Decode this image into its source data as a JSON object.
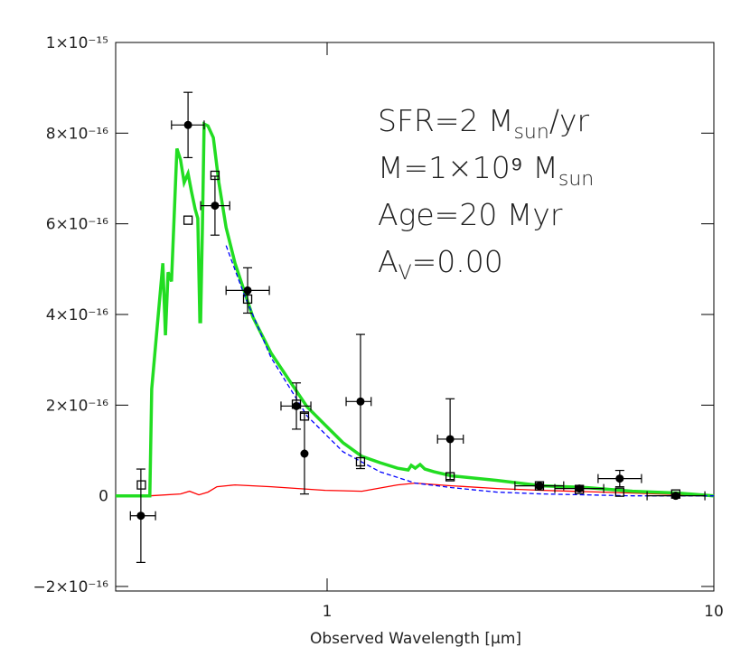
{
  "chart_data": {
    "type": "line",
    "xlabel": "Observed Wavelength [μm]",
    "log_x": true,
    "xlim": [
      0.284,
      10
    ],
    "xticks": [
      1,
      10
    ],
    "ylim": [
      -2.1e-16,
      1e-15
    ],
    "yticks": [
      {
        "value": -2e-16,
        "label": "−2×10⁻¹⁶"
      },
      0,
      {
        "value": 2e-16,
        "label": "2×10⁻¹⁶"
      },
      {
        "value": 4e-16,
        "label": "4×10⁻¹⁶"
      },
      {
        "value": 6e-16,
        "label": "6×10⁻¹⁶"
      },
      {
        "value": 8e-16,
        "label": "8×10⁻¹⁶"
      },
      {
        "value": 1e-15,
        "label": "1×10⁻¹⁵"
      }
    ],
    "annotations": [
      [
        "SFR=2 M",
        "sun",
        "/yr"
      ],
      [
        "M=1×10⁹ M",
        "sun"
      ],
      [
        "Age=20 Myr"
      ],
      [
        "A",
        "V",
        "=0.00"
      ]
    ],
    "series": [
      {
        "color": "#ff0000",
        "style": "solid",
        "x": [
          0.348,
          0.418,
          0.441,
          0.466,
          0.492,
          0.519,
          0.578,
          0.716,
          0.989,
          1.23,
          1.52,
          1.69,
          2.1,
          2.75,
          3.6,
          6.16,
          10.0
        ],
        "values": [
          0,
          4e-18,
          1e-17,
          2e-18,
          8e-18,
          2e-17,
          2.4e-17,
          2e-17,
          1.2e-17,
          1e-17,
          2.4e-17,
          2.8e-17,
          2.2e-17,
          1.6e-17,
          1.2e-17,
          6e-18,
          0
        ]
      },
      {
        "color": "#22dd22",
        "style": "solid",
        "x": [
          0.284,
          0.348,
          0.352,
          0.376,
          0.382,
          0.388,
          0.396,
          0.409,
          0.418,
          0.427,
          0.437,
          0.446,
          0.456,
          0.463,
          0.469,
          0.471,
          0.476,
          0.481,
          0.492,
          0.508,
          0.525,
          0.548,
          0.578,
          0.61,
          0.643,
          0.716,
          0.798,
          0.888,
          0.989,
          1.1,
          1.23,
          1.37,
          1.52,
          1.62,
          1.65,
          1.69,
          1.74,
          1.79,
          1.89,
          2.1,
          2.75,
          3.6,
          4.71,
          6.16,
          8.07,
          10.0
        ],
        "values": [
          0,
          0,
          2.36e-16,
          5.13e-16,
          3.54e-16,
          4.93e-16,
          4.73e-16,
          7.66e-16,
          7.41e-16,
          6.91e-16,
          7.11e-16,
          6.71e-16,
          6.32e-16,
          6.12e-16,
          3.84e-16,
          3.84e-16,
          5.92e-16,
          8.2e-16,
          8.16e-16,
          7.9e-16,
          6.91e-16,
          5.92e-16,
          5.13e-16,
          4.53e-16,
          3.94e-16,
          3.15e-16,
          2.55e-16,
          1.96e-16,
          1.56e-16,
          1.17e-16,
          8.7e-17,
          7.3e-17,
          6.1e-17,
          5.7e-17,
          6.7e-17,
          6.1e-17,
          6.9e-17,
          5.9e-17,
          5.3e-17,
          4.4e-17,
          3.4e-17,
          2.2e-17,
          1.8e-17,
          1e-17,
          6e-18,
          0
        ]
      },
      {
        "color": "#0000ff",
        "style": "dashed",
        "x": [
          0.548,
          0.61,
          0.716,
          0.888,
          1.1,
          1.37,
          1.69,
          2.1,
          2.75,
          3.6,
          6.16,
          10.0
        ],
        "values": [
          5.52e-16,
          4.44e-16,
          3.05e-16,
          1.76e-16,
          9.7e-17,
          5.3e-17,
          2.8e-17,
          1.8e-17,
          8e-18,
          4e-18,
          0,
          0
        ]
      }
    ],
    "points": [
      {
        "marker": "open-square",
        "color": "#000000",
        "x": [
          0.331,
          0.437,
          0.513,
          0.623,
          0.833,
          0.874,
          1.22,
          2.08,
          3.54,
          4.49,
          5.71,
          7.97
        ],
        "values": [
          2.4e-17,
          6.08e-16,
          7.07e-16,
          4.34e-16,
          2.02e-16,
          1.76e-16,
          7.5e-17,
          4.2e-17,
          2.2e-17,
          1.4e-17,
          8e-18,
          4e-18
        ]
      },
      {
        "marker": "filled-circle",
        "color": "#000000",
        "x": [
          0.33,
          0.437,
          0.513,
          0.623,
          0.833,
          0.874,
          1.22,
          2.08,
          3.54,
          4.49,
          5.71,
          7.97
        ],
        "values": [
          -4.4e-17,
          8.18e-16,
          6.4e-16,
          4.53e-16,
          1.98e-16,
          9.3e-17,
          2.08e-16,
          1.25e-16,
          2.2e-17,
          1.6e-17,
          3.8e-17,
          0
        ],
        "yerr": [
          1.03e-16,
          7.2e-17,
          6.5e-17,
          5e-17,
          5.1e-17,
          8.9e-17,
          1.48e-16,
          8.9e-17,
          5e-18,
          5e-18,
          1.8e-17,
          5e-18
        ],
        "xerr_low": [
          0.31,
          0.396,
          0.471,
          0.548,
          0.76,
          0.874,
          1.12,
          1.93,
          3.06,
          3.88,
          5.02,
          6.72
        ],
        "xerr_high": [
          0.36,
          0.481,
          0.56,
          0.709,
          0.908,
          0.874,
          1.3,
          2.25,
          4.09,
          5.19,
          6.5,
          9.48
        ]
      }
    ]
  }
}
